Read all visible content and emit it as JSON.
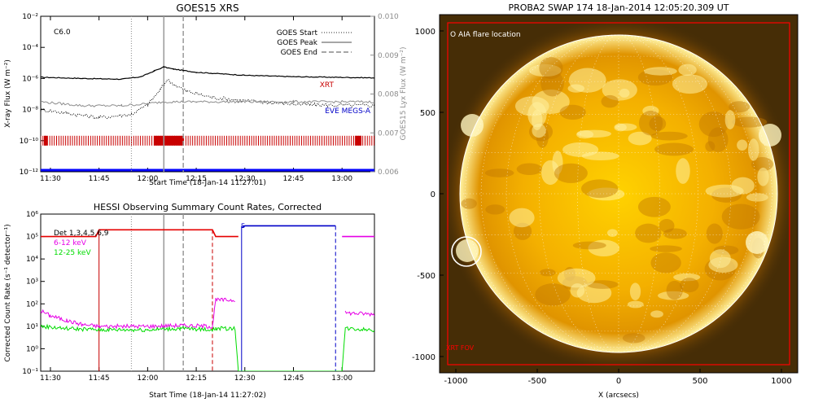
{
  "chart_data": [
    {
      "type": "line",
      "title": "GOES15 XRS",
      "xlabel": "Start Time (18-Jan-14 11:27:01)",
      "ylabel": "X-ray Flux (W m⁻²)",
      "ylabel_right": "GOES15 Lyx Flux (W m⁻²)",
      "xlim": [
        "11:27",
        "13:10"
      ],
      "x_ticks": [
        "11:30",
        "11:45",
        "12:00",
        "12:15",
        "12:30",
        "12:45",
        "13:00"
      ],
      "ylim": [
        1e-12,
        0.01
      ],
      "yscale": "log",
      "y_ticks": [
        "10⁻¹²",
        "10⁻¹⁰",
        "10⁻⁸",
        "10⁻⁶",
        "10⁻⁴",
        "10⁻²"
      ],
      "ylim_right": [
        0.006,
        0.01
      ],
      "y_ticks_right": [
        "0.006",
        "0.007",
        "0.008",
        "0.009",
        "0.010"
      ],
      "flare_class": "C6.0",
      "legend": {
        "placement": "top-right",
        "entries": [
          {
            "label": "GOES Start",
            "style": "dotted"
          },
          {
            "label": "GOES Peak",
            "style": "solid"
          },
          {
            "label": "GOES End",
            "style": "dashed"
          }
        ]
      },
      "event_lines": {
        "start": "11:55",
        "peak": "12:05",
        "end": "12:11"
      },
      "series": [
        {
          "name": "long",
          "color": "#000000",
          "x": [
            "11:27",
            "11:40",
            "11:52",
            "11:58",
            "12:02",
            "12:05",
            "12:08",
            "12:15",
            "12:30",
            "12:45",
            "13:10"
          ],
          "y": [
            1.2e-06,
            1e-06,
            9e-07,
            1.3e-06,
            3e-06,
            5.5e-06,
            4e-06,
            2.5e-06,
            1.6e-06,
            1.3e-06,
            1.1e-06
          ]
        },
        {
          "name": "short",
          "color": "#000000",
          "style": "dotted",
          "x": [
            "11:27",
            "11:35",
            "11:45",
            "11:55",
            "12:00",
            "12:04",
            "12:06",
            "12:12",
            "12:20",
            "12:35",
            "12:50",
            "13:10"
          ],
          "y": [
            1e-08,
            6e-09,
            3e-09,
            5e-09,
            2e-08,
            2e-07,
            8e-07,
            1.5e-07,
            6e-08,
            3e-08,
            2e-08,
            1.8e-08
          ]
        },
        {
          "name": "Lyman-alpha",
          "color": "#8c8c8c",
          "x": [
            "11:27",
            "11:40",
            "11:52",
            "12:00",
            "12:05",
            "12:15",
            "12:30",
            "12:45",
            "13:10"
          ],
          "y": [
            0.0078,
            0.0077,
            0.0077,
            0.00775,
            0.0078,
            0.0078,
            0.0078,
            0.0078,
            0.0078
          ]
        }
      ],
      "overlay_labels": [
        {
          "text": "XRT",
          "color": "#c80000"
        },
        {
          "text": "EVE MEGS-A",
          "color": "#0000c8"
        }
      ],
      "coverage_bars": {
        "xrt": {
          "color": "#c80000",
          "dense_intervals": [
            [
              "11:28",
              "11:29"
            ],
            [
              "12:02",
              "12:11"
            ],
            [
              "13:04",
              "13:06"
            ]
          ]
        },
        "eve": {
          "color": "#0000ff",
          "interval": [
            "11:27",
            "13:10"
          ]
        }
      }
    },
    {
      "type": "line",
      "title": "HESSI Observing Summary Count Rates, Corrected",
      "xlabel": "Start Time (18-Jan-14 11:27:02)",
      "ylabel": "Corrected Count Rate (s⁻¹ detector⁻¹)",
      "xlim": [
        "11:27",
        "13:10"
      ],
      "x_ticks": [
        "11:30",
        "11:45",
        "12:00",
        "12:15",
        "12:30",
        "12:45",
        "13:00"
      ],
      "ylim": [
        0.1,
        1000000.0
      ],
      "yscale": "log",
      "y_ticks": [
        "10⁻¹",
        "10⁰",
        "10¹",
        "10²",
        "10³",
        "10⁴",
        "10⁵",
        "10⁶"
      ],
      "legend": {
        "placement": "top-left",
        "entries": [
          {
            "label": "Det 1,3,4,5,6,9",
            "color": "#000000"
          },
          {
            "label": "6-12 keV",
            "color": "#e600e6"
          },
          {
            "label": "12-25 keV",
            "color": "#00dc00"
          }
        ]
      },
      "event_lines": {
        "start": "11:55",
        "peak": "12:05",
        "end": "12:11"
      },
      "state_annotations": [
        {
          "text": "S",
          "color": "#0000c8"
        }
      ],
      "series": [
        {
          "name": "6-12 keV",
          "color": "#e600e6",
          "x": [
            "11:27",
            "11:30",
            "11:35",
            "11:40",
            "11:45",
            "12:00",
            "12:10",
            "12:20",
            "12:21",
            "12:27",
            "12:28",
            "13:00",
            "13:01",
            "13:10"
          ],
          "y": [
            50,
            30,
            18,
            12,
            10,
            10,
            11,
            10,
            150,
            150,
            null,
            null,
            40,
            35
          ]
        },
        {
          "name": "12-25 keV",
          "color": "#00dc00",
          "x": [
            "11:27",
            "11:35",
            "11:45",
            "12:00",
            "12:10",
            "12:20",
            "12:21",
            "12:27",
            "12:28",
            "13:00",
            "13:01",
            "13:10"
          ],
          "y": [
            10,
            8,
            7,
            7,
            8,
            7,
            8,
            8,
            0.1,
            0.1,
            8,
            7
          ]
        },
        {
          "name": "attenuator / state",
          "color": "#e60000",
          "x": [
            "11:27",
            "11:44",
            "11:45",
            "12:20",
            "12:21",
            "12:28"
          ],
          "y": [
            100000.0,
            100000.0,
            200000.0,
            200000.0,
            100000.0,
            100000.0
          ]
        },
        {
          "name": "state S",
          "color": "#0000c8",
          "x": [
            "12:29",
            "12:30",
            "12:57",
            "12:58"
          ],
          "y": [
            250000.0,
            300000.0,
            300000.0,
            300000.0
          ]
        }
      ],
      "state_lines": {
        "red_solid": "11:45",
        "red_dashed": "12:20",
        "blue_solid": "12:29",
        "blue_dashed": "12:58"
      }
    },
    {
      "type": "heatmap",
      "title": "PROBA2 SWAP 174 18-Jan-2014 12:05:20.309 UT",
      "xlabel": "X (arcsecs)",
      "ylabel": "",
      "xlim": [
        -1100,
        1100
      ],
      "ylim": [
        -1100,
        1100
      ],
      "x_ticks": [
        "-1000",
        "-500",
        "0",
        "500",
        "1000"
      ],
      "y_ticks": [
        "-1000",
        "-500",
        "0",
        "500",
        "1000"
      ],
      "grid": true,
      "solar_radius_arcsec": 975,
      "flare_location_arcsec": {
        "x": -935,
        "y": -355,
        "radius": 90
      },
      "annotations": [
        {
          "text": "O AIA flare location",
          "color": "#ffffff"
        },
        {
          "text": "XRT FOV",
          "color": "#ff0000"
        }
      ],
      "xrt_fov_arcsec": {
        "x": [
          -1050,
          1050
        ],
        "y": [
          -1050,
          1050
        ]
      },
      "colors": {
        "sun_core": "#ffd200",
        "sun_mid": "#f0a800",
        "sun_edge": "#b46800",
        "background": "#462d06"
      }
    }
  ]
}
